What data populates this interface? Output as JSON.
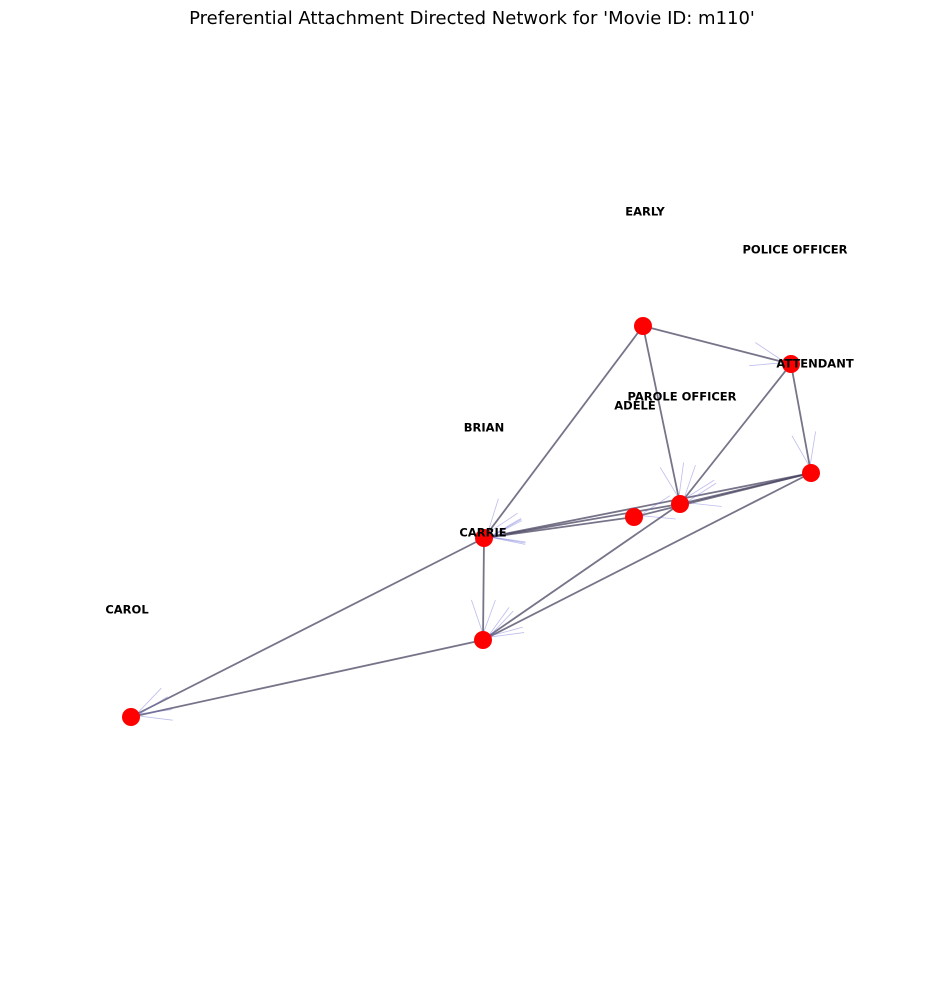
{
  "title": "Preferential Attachment Directed Network for 'Movie ID: m110'",
  "colors": {
    "node": "#ff0000",
    "edge": "#4a4662",
    "arrow": "#6b6bd6"
  },
  "nodes": [
    {
      "id": "n1",
      "label": "EARLY"
    },
    {
      "id": "n2",
      "label": "ATTENDANT"
    },
    {
      "id": "n3",
      "label": "POLICE OFFICER"
    },
    {
      "id": "n4",
      "label": "ADELE"
    },
    {
      "id": "n5",
      "label": "PAROLE OFFICER"
    },
    {
      "id": "n6",
      "label": "CARRIE"
    },
    {
      "id": "n7",
      "label": "BRIAN"
    },
    {
      "id": "n8",
      "label": "CAROL"
    }
  ],
  "edges": [
    [
      "n1",
      "n2"
    ],
    [
      "n1",
      "n4"
    ],
    [
      "n1",
      "n6"
    ],
    [
      "n2",
      "n3"
    ],
    [
      "n2",
      "n4"
    ],
    [
      "n3",
      "n4"
    ],
    [
      "n3",
      "n5"
    ],
    [
      "n3",
      "n6"
    ],
    [
      "n3",
      "n7"
    ],
    [
      "n4",
      "n6"
    ],
    [
      "n4",
      "n7"
    ],
    [
      "n5",
      "n6"
    ],
    [
      "n6",
      "n7"
    ],
    [
      "n6",
      "n8"
    ],
    [
      "n7",
      "n8"
    ]
  ]
}
